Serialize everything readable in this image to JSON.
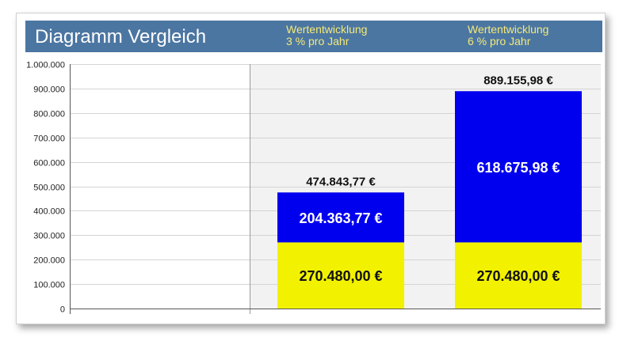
{
  "header": {
    "title": "Diagramm Vergleich",
    "columns": [
      {
        "line1": "Wertentwicklung",
        "line2": "3 % pro Jahr"
      },
      {
        "line1": "Wertentwicklung",
        "line2": "6 % pro Jahr"
      }
    ]
  },
  "colors": {
    "header_bg": "#4c76a2",
    "header_text": "#f4ea76",
    "base_segment": "#f2f200",
    "gain_segment": "#0000ee",
    "right_panel_bg": "#f2f2f2"
  },
  "chart_data": {
    "type": "bar",
    "stacked": true,
    "categories": [
      "",
      "Wertentwicklung 3 % pro Jahr",
      "Wertentwicklung 6 % pro Jahr"
    ],
    "series": [
      {
        "values": [
          0,
          270480.0,
          270480.0
        ],
        "labels": [
          "",
          "270.480,00 €",
          "270.480,00 €"
        ]
      },
      {
        "values": [
          0,
          204363.77,
          618675.98
        ],
        "labels": [
          "",
          "204.363,77 €",
          "618.675,98 €"
        ]
      }
    ],
    "totals": [
      {
        "value": 474843.77,
        "label": "474.843,77 €"
      },
      {
        "value": 889155.98,
        "label": "889.155,98 €"
      }
    ],
    "ylim": [
      0,
      1000000
    ],
    "yticks": [
      0,
      100000,
      200000,
      300000,
      400000,
      500000,
      600000,
      700000,
      800000,
      900000,
      1000000
    ],
    "ytick_labels": [
      "0",
      "100.000",
      "200.000",
      "300.000",
      "400.000",
      "500.000",
      "600.000",
      "700.000",
      "800.000",
      "900.000",
      "1.000.000"
    ],
    "grid": true
  }
}
